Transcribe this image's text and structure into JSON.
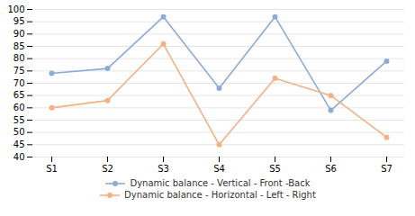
{
  "chart_data": {
    "type": "line",
    "categories": [
      "S1",
      "S2",
      "S3",
      "S4",
      "S5",
      "S6",
      "S7"
    ],
    "series": [
      {
        "name": "Dynamic balance - Vertical - Front -Back",
        "color": "#8EAADB",
        "values": [
          74,
          76,
          97,
          68,
          97,
          59,
          79
        ],
        "marker": "circle"
      },
      {
        "name": "Dynamic balance - Horizontal - Left - Right",
        "color": "#F4B183",
        "values": [
          60,
          63,
          86,
          45,
          72,
          65,
          48
        ],
        "marker": "circle"
      }
    ],
    "ylim": [
      40,
      100
    ],
    "yticks": [
      40,
      45,
      50,
      55,
      60,
      65,
      70,
      75,
      80,
      85,
      90,
      95,
      100
    ],
    "grid": true,
    "legend": "bottom"
  }
}
